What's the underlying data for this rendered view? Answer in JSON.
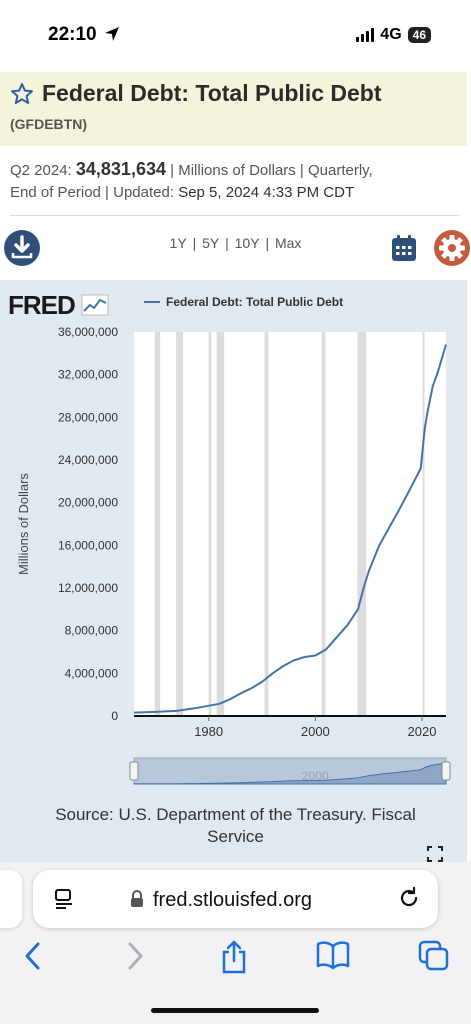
{
  "status_bar": {
    "time": "22:10",
    "network": "4G",
    "battery": "46"
  },
  "header": {
    "title": "Federal Debt: Total Public Debt",
    "series_id": "(GFDEBTN)"
  },
  "observation": {
    "period_label": "Q2 2024:",
    "value": "34,831,634",
    "units_line": "| Millions of Dollars | Quarterly,",
    "line2_prefix": "End of Period | Updated:",
    "updated": "Sep 5, 2024 4:33 PM CDT"
  },
  "toolbar": {
    "r1y": "1Y",
    "r5y": "5Y",
    "r10y": "10Y",
    "rmax": "Max",
    "sep": "|"
  },
  "chart_data": {
    "type": "line",
    "brand": "FRED",
    "legend": [
      "Federal Debt: Total Public Debt"
    ],
    "ylabel": "Millions of Dollars",
    "xlim": [
      1966,
      2024.5
    ],
    "ylim": [
      0,
      36000000
    ],
    "y_ticks": [
      "0",
      "4,000,000",
      "8,000,000",
      "12,000,000",
      "16,000,000",
      "20,000,000",
      "24,000,000",
      "28,000,000",
      "32,000,000",
      "36,000,000"
    ],
    "x_ticks": [
      "1980",
      "2000",
      "2020"
    ],
    "recessions": [
      [
        1969.9,
        1970.9
      ],
      [
        1973.9,
        1975.2
      ],
      [
        1980.0,
        1980.5
      ],
      [
        1981.5,
        1982.9
      ],
      [
        1990.5,
        1991.2
      ],
      [
        2001.2,
        2001.9
      ],
      [
        2007.9,
        2009.5
      ],
      [
        2020.1,
        2020.4
      ]
    ],
    "series": [
      {
        "name": "Federal Debt: Total Public Debt",
        "x": [
          1966,
          1970,
          1974,
          1978,
          1982,
          1984,
          1986,
          1988,
          1990,
          1992,
          1994,
          1996,
          1998,
          2000,
          2002,
          2004,
          2006,
          2008,
          2009,
          2010,
          2012,
          2014,
          2016,
          2018,
          2019.75,
          2020.5,
          2021,
          2022,
          2023,
          2024.5
        ],
        "y": [
          320000,
          380000,
          480000,
          780000,
          1140000,
          1570000,
          2120000,
          2600000,
          3200000,
          4000000,
          4690000,
          5220000,
          5530000,
          5670000,
          6230000,
          7380000,
          8500000,
          10000000,
          11900000,
          13560000,
          16000000,
          17800000,
          19600000,
          21500000,
          23200000,
          26900000,
          28400000,
          30900000,
          32300000,
          34831634
        ]
      }
    ],
    "navigator_label": "2000"
  },
  "source": {
    "line1": "Source: U.S. Department of the Treasury. Fiscal",
    "line2": "Service"
  },
  "browser": {
    "url": "fred.stlouisfed.org"
  }
}
